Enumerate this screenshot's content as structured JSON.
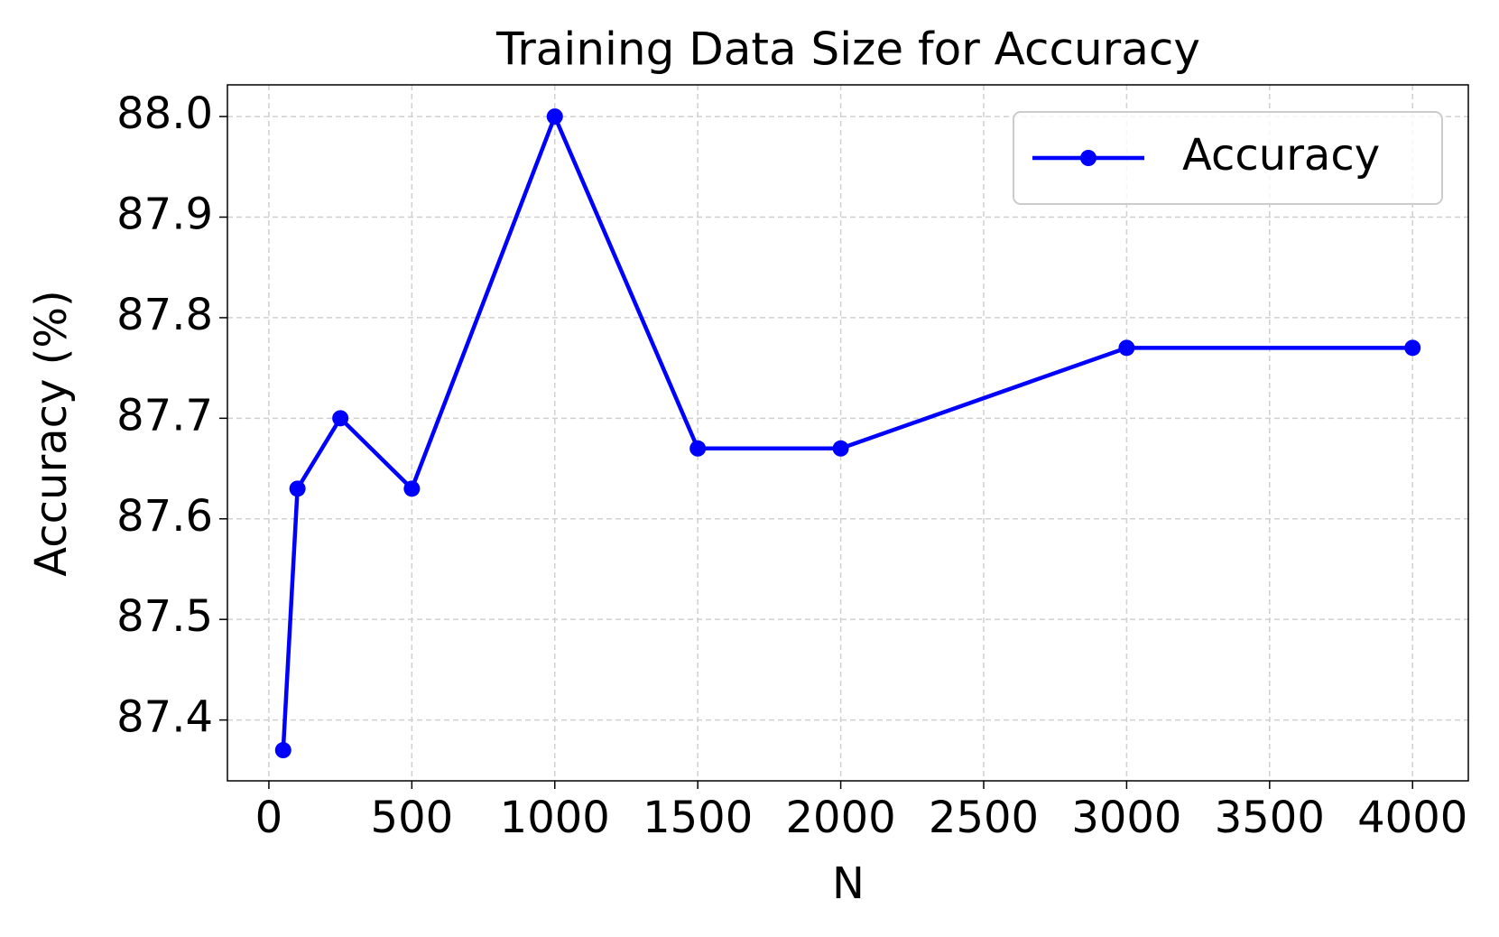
{
  "chart_data": {
    "type": "line",
    "title": "Training Data Size for Accuracy",
    "x_label": "N",
    "y_label": "Accuracy (%)",
    "x": [
      50,
      100,
      250,
      500,
      1000,
      1500,
      2000,
      3000,
      4000
    ],
    "series": [
      {
        "name": "Accuracy",
        "color": "#0000ff",
        "values": [
          87.37,
          87.63,
          87.7,
          87.63,
          88.0,
          87.67,
          87.67,
          87.77,
          87.77
        ]
      }
    ],
    "xlim": [
      -145,
      4195
    ],
    "ylim": [
      87.3395,
      88.0315
    ],
    "xticks": [
      0,
      500,
      1000,
      1500,
      2000,
      2500,
      3000,
      3500,
      4000
    ],
    "yticks": [
      87.4,
      87.5,
      87.6,
      87.7,
      87.8,
      87.9,
      {
        "value": 88,
        "label": "88.0"
      }
    ],
    "grid": true,
    "legend": "upper right"
  }
}
